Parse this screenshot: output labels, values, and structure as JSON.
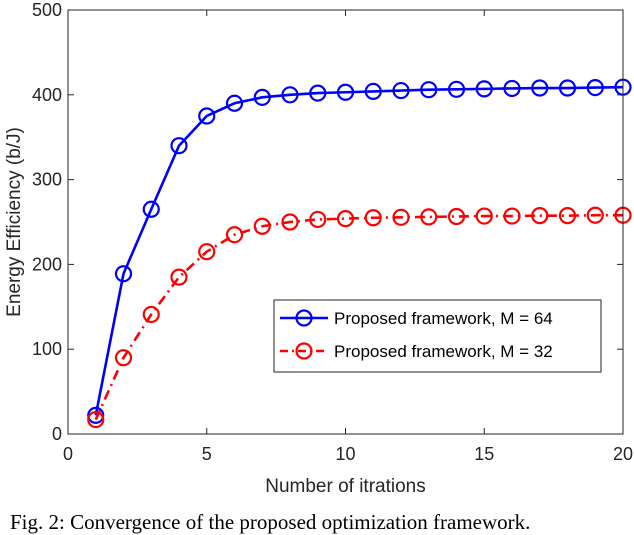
{
  "chart_data": {
    "type": "line",
    "xlabel": "Number of itrations",
    "ylabel": "Energy Efficiency (b/J)",
    "xlim": [
      0,
      20
    ],
    "ylim": [
      0,
      500
    ],
    "xticks": [
      0,
      5,
      10,
      15,
      20
    ],
    "yticks": [
      0,
      100,
      200,
      300,
      400,
      500
    ],
    "grid": false,
    "legend_position": "lower-right",
    "x": [
      1,
      2,
      3,
      4,
      5,
      6,
      7,
      8,
      9,
      10,
      11,
      12,
      13,
      14,
      15,
      16,
      17,
      18,
      19,
      20
    ],
    "series": [
      {
        "name": "Proposed framework, M = 64",
        "color": "#0000ff",
        "line_style": "solid",
        "marker": "circle",
        "values": [
          22,
          189,
          265,
          340,
          375,
          390,
          397,
          400,
          402,
          403,
          404,
          405,
          406,
          406.5,
          407,
          407.5,
          408,
          408,
          408.5,
          409
        ]
      },
      {
        "name": "Proposed framework, M = 32",
        "color": "#ff0000",
        "line_style": "dash-dot",
        "marker": "circle",
        "values": [
          17,
          90,
          141,
          185,
          215,
          235,
          245,
          250,
          253,
          254,
          255,
          255.5,
          256,
          256.5,
          257,
          257,
          257.5,
          257.5,
          258,
          258
        ]
      }
    ]
  },
  "caption": "Fig. 2: Convergence of the proposed optimization framework."
}
